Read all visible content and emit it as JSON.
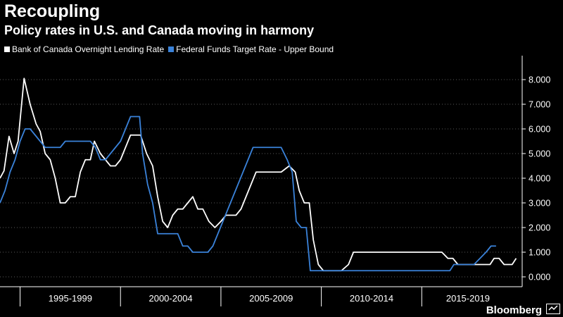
{
  "chart_data": {
    "type": "line",
    "title": "Recoupling",
    "subtitle": "Policy rates in U.S. and Canada moving in harmony",
    "xlabel": "",
    "ylabel": "",
    "xlim": [
      1993.0,
      2019.0
    ],
    "ylim": [
      -0.4,
      8.8
    ],
    "yticks": [
      0,
      1,
      2,
      3,
      4,
      5,
      6,
      7,
      8
    ],
    "ytick_labels": [
      "0.000",
      "1.000",
      "2.000",
      "3.000",
      "4.000",
      "5.000",
      "6.000",
      "7.000",
      "8.000"
    ],
    "x_period_boundaries": [
      1994,
      1999,
      2004,
      2009,
      2014
    ],
    "x_period_labels": [
      {
        "label": "1995-1999",
        "center": 1996.5
      },
      {
        "label": "2000-2004",
        "center": 2001.5
      },
      {
        "label": "2005-2009",
        "center": 2006.5
      },
      {
        "label": "2010-2014",
        "center": 2011.5
      },
      {
        "label": "2015-2019",
        "center": 2016.3
      }
    ],
    "series": [
      {
        "name": "Bank of Canada Overnight Lending Rate",
        "color": "#ffffff",
        "points": [
          [
            1993.0,
            4.0
          ],
          [
            1993.2,
            4.3
          ],
          [
            1993.45,
            5.7
          ],
          [
            1993.7,
            5.0
          ],
          [
            1993.9,
            5.5
          ],
          [
            1994.2,
            8.05
          ],
          [
            1994.5,
            7.0
          ],
          [
            1994.8,
            6.2
          ],
          [
            1995.0,
            5.9
          ],
          [
            1995.25,
            5.0
          ],
          [
            1995.5,
            4.75
          ],
          [
            1995.75,
            4.0
          ],
          [
            1996.0,
            3.0
          ],
          [
            1996.25,
            3.0
          ],
          [
            1996.5,
            3.25
          ],
          [
            1996.75,
            3.25
          ],
          [
            1997.0,
            4.25
          ],
          [
            1997.25,
            4.75
          ],
          [
            1997.5,
            4.75
          ],
          [
            1997.7,
            5.5
          ],
          [
            1998.0,
            5.0
          ],
          [
            1998.25,
            4.75
          ],
          [
            1998.5,
            4.5
          ],
          [
            1998.75,
            4.5
          ],
          [
            1999.0,
            4.75
          ],
          [
            1999.25,
            5.25
          ],
          [
            1999.5,
            5.75
          ],
          [
            1999.75,
            5.75
          ],
          [
            2000.0,
            5.75
          ],
          [
            2000.3,
            5.0
          ],
          [
            2000.6,
            4.5
          ],
          [
            2000.85,
            3.25
          ],
          [
            2001.1,
            2.25
          ],
          [
            2001.35,
            2.0
          ],
          [
            2001.6,
            2.5
          ],
          [
            2001.85,
            2.75
          ],
          [
            2002.1,
            2.75
          ],
          [
            2002.35,
            3.0
          ],
          [
            2002.6,
            3.25
          ],
          [
            2002.85,
            2.75
          ],
          [
            2003.1,
            2.75
          ],
          [
            2003.4,
            2.25
          ],
          [
            2003.7,
            2.0
          ],
          [
            2004.0,
            2.25
          ],
          [
            2004.25,
            2.5
          ],
          [
            2004.5,
            2.5
          ],
          [
            2004.75,
            2.5
          ],
          [
            2005.0,
            2.75
          ],
          [
            2005.25,
            3.25
          ],
          [
            2005.5,
            3.75
          ],
          [
            2005.75,
            4.25
          ],
          [
            2006.0,
            4.25
          ],
          [
            2006.5,
            4.25
          ],
          [
            2007.0,
            4.25
          ],
          [
            2007.4,
            4.5
          ],
          [
            2007.7,
            4.25
          ],
          [
            2007.9,
            3.5
          ],
          [
            2008.15,
            3.0
          ],
          [
            2008.4,
            3.0
          ],
          [
            2008.6,
            1.5
          ],
          [
            2008.85,
            0.5
          ],
          [
            2009.1,
            0.25
          ],
          [
            2009.5,
            0.25
          ],
          [
            2010.0,
            0.25
          ],
          [
            2010.35,
            0.5
          ],
          [
            2010.6,
            1.0
          ],
          [
            2012.0,
            1.0
          ],
          [
            2013.0,
            1.0
          ],
          [
            2014.0,
            1.0
          ],
          [
            2015.0,
            1.0
          ],
          [
            2015.3,
            0.75
          ],
          [
            2015.55,
            0.75
          ],
          [
            2015.8,
            0.5
          ],
          [
            2016.5,
            0.5
          ],
          [
            2017.0,
            0.5
          ],
          [
            2017.4,
            0.5
          ],
          [
            2017.6,
            0.75
          ],
          [
            2017.85,
            0.75
          ],
          [
            2018.1,
            0.5
          ],
          [
            2018.5,
            0.5
          ],
          [
            2018.7,
            0.75
          ]
        ]
      },
      {
        "name": "Federal Funds Target Rate - Upper Bound",
        "color": "#3a82d9",
        "points": [
          [
            1993.0,
            3.0
          ],
          [
            1993.25,
            3.5
          ],
          [
            1993.5,
            4.25
          ],
          [
            1993.75,
            4.75
          ],
          [
            1994.0,
            5.5
          ],
          [
            1994.25,
            6.0
          ],
          [
            1994.5,
            6.0
          ],
          [
            1994.75,
            5.75
          ],
          [
            1995.0,
            5.5
          ],
          [
            1995.25,
            5.25
          ],
          [
            1995.5,
            5.25
          ],
          [
            1996.0,
            5.25
          ],
          [
            1996.25,
            5.5
          ],
          [
            1996.5,
            5.5
          ],
          [
            1997.0,
            5.5
          ],
          [
            1997.5,
            5.5
          ],
          [
            1997.75,
            5.25
          ],
          [
            1998.0,
            4.75
          ],
          [
            1998.25,
            4.75
          ],
          [
            1998.5,
            5.0
          ],
          [
            1998.75,
            5.25
          ],
          [
            1999.0,
            5.5
          ],
          [
            1999.25,
            6.0
          ],
          [
            1999.5,
            6.5
          ],
          [
            1999.75,
            6.5
          ],
          [
            1999.95,
            6.5
          ],
          [
            2000.1,
            5.0
          ],
          [
            2000.35,
            3.75
          ],
          [
            2000.6,
            3.0
          ],
          [
            2000.85,
            1.75
          ],
          [
            2001.1,
            1.75
          ],
          [
            2001.5,
            1.75
          ],
          [
            2001.85,
            1.75
          ],
          [
            2002.1,
            1.25
          ],
          [
            2002.35,
            1.25
          ],
          [
            2002.6,
            1.0
          ],
          [
            2003.0,
            1.0
          ],
          [
            2003.35,
            1.0
          ],
          [
            2003.6,
            1.25
          ],
          [
            2003.85,
            1.75
          ],
          [
            2004.1,
            2.25
          ],
          [
            2004.35,
            2.75
          ],
          [
            2004.6,
            3.25
          ],
          [
            2004.85,
            3.75
          ],
          [
            2005.1,
            4.25
          ],
          [
            2005.35,
            4.75
          ],
          [
            2005.6,
            5.25
          ],
          [
            2005.85,
            5.25
          ],
          [
            2006.5,
            5.25
          ],
          [
            2007.0,
            5.25
          ],
          [
            2007.3,
            4.75
          ],
          [
            2007.55,
            4.25
          ],
          [
            2007.75,
            2.25
          ],
          [
            2008.0,
            2.0
          ],
          [
            2008.25,
            2.0
          ],
          [
            2008.45,
            0.25
          ],
          [
            2009.0,
            0.25
          ],
          [
            2010.0,
            0.25
          ],
          [
            2012.0,
            0.25
          ],
          [
            2014.0,
            0.25
          ],
          [
            2015.4,
            0.25
          ],
          [
            2015.6,
            0.5
          ],
          [
            2016.6,
            0.5
          ],
          [
            2016.9,
            0.75
          ],
          [
            2017.2,
            1.0
          ],
          [
            2017.45,
            1.25
          ],
          [
            2017.7,
            1.25
          ]
        ]
      }
    ]
  },
  "source": {
    "brand": "Bloomberg"
  }
}
